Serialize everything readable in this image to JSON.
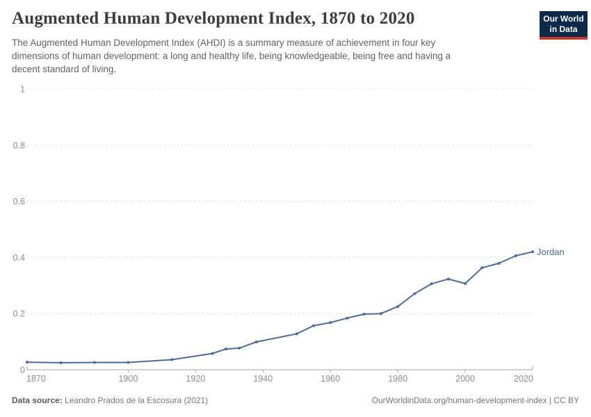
{
  "header": {
    "title": "Augmented Human Development Index, 1870 to 2020",
    "subtitle": "The Augmented Human Development Index (AHDI) is a summary measure of achievement in four key\ndimensions of human development: a long and healthy life, being knowledgeable, being free and having a\ndecent standard of living.",
    "logo": {
      "line1": "Our World",
      "line2": "in Data",
      "bg_color": "#0e2a4a",
      "accent_color": "#ca342c"
    }
  },
  "chart_data": {
    "type": "line",
    "title": "Augmented Human Development Index, 1870 to 2020",
    "xlabel": "",
    "ylabel": "",
    "xlim": [
      1870,
      2020
    ],
    "ylim": [
      0,
      1
    ],
    "x_ticks": [
      1870,
      1900,
      1920,
      1940,
      1960,
      1980,
      2000,
      2020
    ],
    "y_ticks": [
      0,
      0.2,
      0.4,
      0.6,
      0.8,
      1
    ],
    "grid": "horizontal-dashed",
    "legend_position": "end-of-line-label",
    "series": [
      {
        "name": "Jordan",
        "color": "#4c6a9c",
        "points": [
          [
            1870,
            0.027
          ],
          [
            1880,
            0.025
          ],
          [
            1890,
            0.026
          ],
          [
            1900,
            0.026
          ],
          [
            1913,
            0.036
          ],
          [
            1925,
            0.058
          ],
          [
            1929,
            0.074
          ],
          [
            1933,
            0.077
          ],
          [
            1938,
            0.099
          ],
          [
            1950,
            0.128
          ],
          [
            1955,
            0.157
          ],
          [
            1960,
            0.168
          ],
          [
            1965,
            0.184
          ],
          [
            1970,
            0.198
          ],
          [
            1975,
            0.2
          ],
          [
            1980,
            0.225
          ],
          [
            1985,
            0.271
          ],
          [
            1990,
            0.306
          ],
          [
            1995,
            0.323
          ],
          [
            2000,
            0.307
          ],
          [
            2005,
            0.363
          ],
          [
            2010,
            0.379
          ],
          [
            2015,
            0.406
          ],
          [
            2020,
            0.42
          ]
        ]
      }
    ],
    "colors": {
      "grid": "#dadada",
      "axis": "#a3a3a3",
      "tick_labels": "#8c8c8c"
    }
  },
  "footer": {
    "source_label": "Data source:",
    "source_value": "Leandro Prados de la Escosura (2021)",
    "link": "OurWorldinData.org/human-development-index | CC BY"
  }
}
